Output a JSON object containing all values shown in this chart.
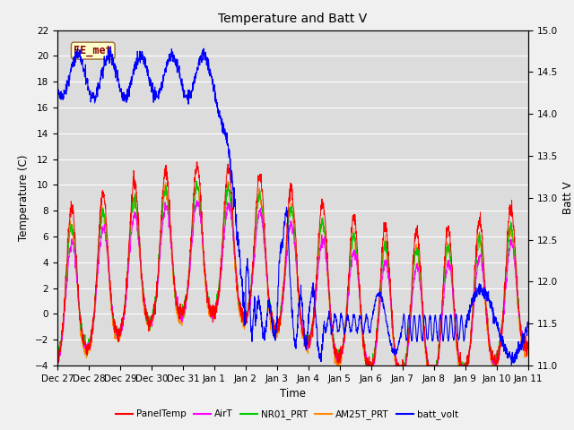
{
  "title": "Temperature and Batt V",
  "xlabel": "Time",
  "ylabel_left": "Temperature (C)",
  "ylabel_right": "Batt V",
  "ylim_left": [
    -4,
    22
  ],
  "ylim_right": [
    11.0,
    15.0
  ],
  "yticks_left": [
    -4,
    -2,
    0,
    2,
    4,
    6,
    8,
    10,
    12,
    14,
    16,
    18,
    20,
    22
  ],
  "yticks_right": [
    11.0,
    11.5,
    12.0,
    12.5,
    13.0,
    13.5,
    14.0,
    14.5,
    15.0
  ],
  "xtick_labels": [
    "Dec 27",
    "Dec 28",
    "Dec 29",
    "Dec 30",
    "Dec 31",
    "Jan 1",
    "Jan 2",
    "Jan 3",
    "Jan 4",
    "Jan 5",
    "Jan 6",
    "Jan 7",
    "Jan 8",
    "Jan 9",
    "Jan 10",
    "Jan 11"
  ],
  "annotation_text": "EE_met",
  "annotation_bg": "#ffffcc",
  "annotation_border": "#996633",
  "annotation_text_color": "#880000",
  "series_colors": {
    "PanelTemp": "#ff0000",
    "AirT": "#ff00ff",
    "NR01_PRT": "#00cc00",
    "AM25T_PRT": "#ff8800",
    "batt_volt": "#0000ff"
  },
  "legend_entries": [
    "PanelTemp",
    "AirT",
    "NR01_PRT",
    "AM25T_PRT",
    "batt_volt"
  ],
  "fig_bg_color": "#f0f0f0",
  "plot_bg_color": "#dcdcdc",
  "grid_color": "#ffffff",
  "n_days": 15,
  "points_per_day": 144
}
